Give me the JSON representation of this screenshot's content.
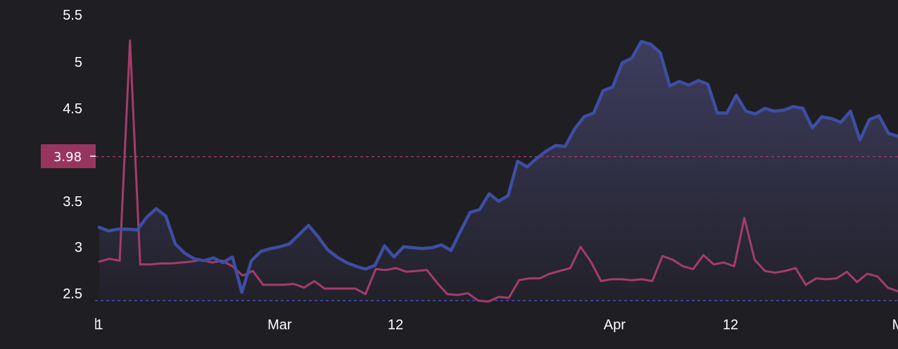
{
  "colors": {
    "background": "#1e1e23",
    "primary_series": "#3d4ea3",
    "secondary_series": "#a43c6b",
    "badge_bg": "#98355f",
    "baseline": "#4b5bd0",
    "tick_text": "#ffffff"
  },
  "chart_data": {
    "type": "line",
    "title": "",
    "xlabel": "",
    "ylabel": "",
    "grid": false,
    "ylim": [
      2.43,
      5.55
    ],
    "y_ticks": [
      "5.5",
      "5",
      "4.5",
      "3.5",
      "3",
      "2.5"
    ],
    "x_ticks": [
      {
        "label": "1",
        "index": 0
      },
      {
        "label": "Mar",
        "index": 28
      },
      {
        "label": "12",
        "index": 46
      },
      {
        "label": "Apr",
        "index": 80
      },
      {
        "label": "12",
        "index": 98
      },
      {
        "label": "M",
        "index": 124
      }
    ],
    "reference_line": {
      "value": 3.98,
      "label": "3.98"
    },
    "baseline_value": 2.43,
    "series": [
      {
        "values": [
          3.22,
          3.18,
          3.2,
          3.2,
          3.19,
          3.33,
          3.42,
          3.34,
          3.04,
          2.94,
          2.88,
          2.86,
          2.89,
          2.84,
          2.9,
          2.52,
          2.86,
          2.96,
          2.99,
          3.01,
          3.04,
          3.14,
          3.24,
          3.12,
          2.98,
          2.9,
          2.84,
          2.8,
          2.77,
          2.81,
          3.02,
          2.9,
          3.01,
          3.0,
          2.99,
          3.0,
          3.03,
          2.97,
          3.18,
          3.38,
          3.41,
          3.58,
          3.5,
          3.56,
          3.93,
          3.87,
          3.96,
          4.04,
          4.1,
          4.09,
          4.28,
          4.41,
          4.45,
          4.69,
          4.73,
          4.99,
          5.04,
          5.22,
          5.19,
          5.1,
          4.74,
          4.79,
          4.75,
          4.8,
          4.76,
          4.45,
          4.45,
          4.64,
          4.47,
          4.44,
          4.5,
          4.47,
          4.48,
          4.52,
          4.5,
          4.29,
          4.41,
          4.39,
          4.35,
          4.47,
          4.16,
          4.38,
          4.42,
          4.23,
          4.2
        ]
      },
      {
        "values": [
          2.85,
          2.88,
          2.86,
          5.23,
          2.82,
          2.82,
          2.83,
          2.83,
          2.84,
          2.85,
          2.87,
          2.84,
          2.86,
          2.8,
          2.7,
          2.75,
          2.6,
          2.6,
          2.6,
          2.61,
          2.57,
          2.64,
          2.56,
          2.56,
          2.56,
          2.56,
          2.5,
          2.77,
          2.76,
          2.78,
          2.74,
          2.75,
          2.76,
          2.62,
          2.5,
          2.49,
          2.51,
          2.43,
          2.42,
          2.47,
          2.46,
          2.65,
          2.67,
          2.67,
          2.72,
          2.75,
          2.78,
          3.01,
          2.85,
          2.64,
          2.66,
          2.66,
          2.65,
          2.66,
          2.64,
          2.91,
          2.87,
          2.8,
          2.77,
          2.92,
          2.82,
          2.84,
          2.8,
          3.32,
          2.87,
          2.75,
          2.73,
          2.75,
          2.78,
          2.6,
          2.67,
          2.66,
          2.67,
          2.74,
          2.63,
          2.72,
          2.69,
          2.57,
          2.53
        ]
      }
    ]
  }
}
